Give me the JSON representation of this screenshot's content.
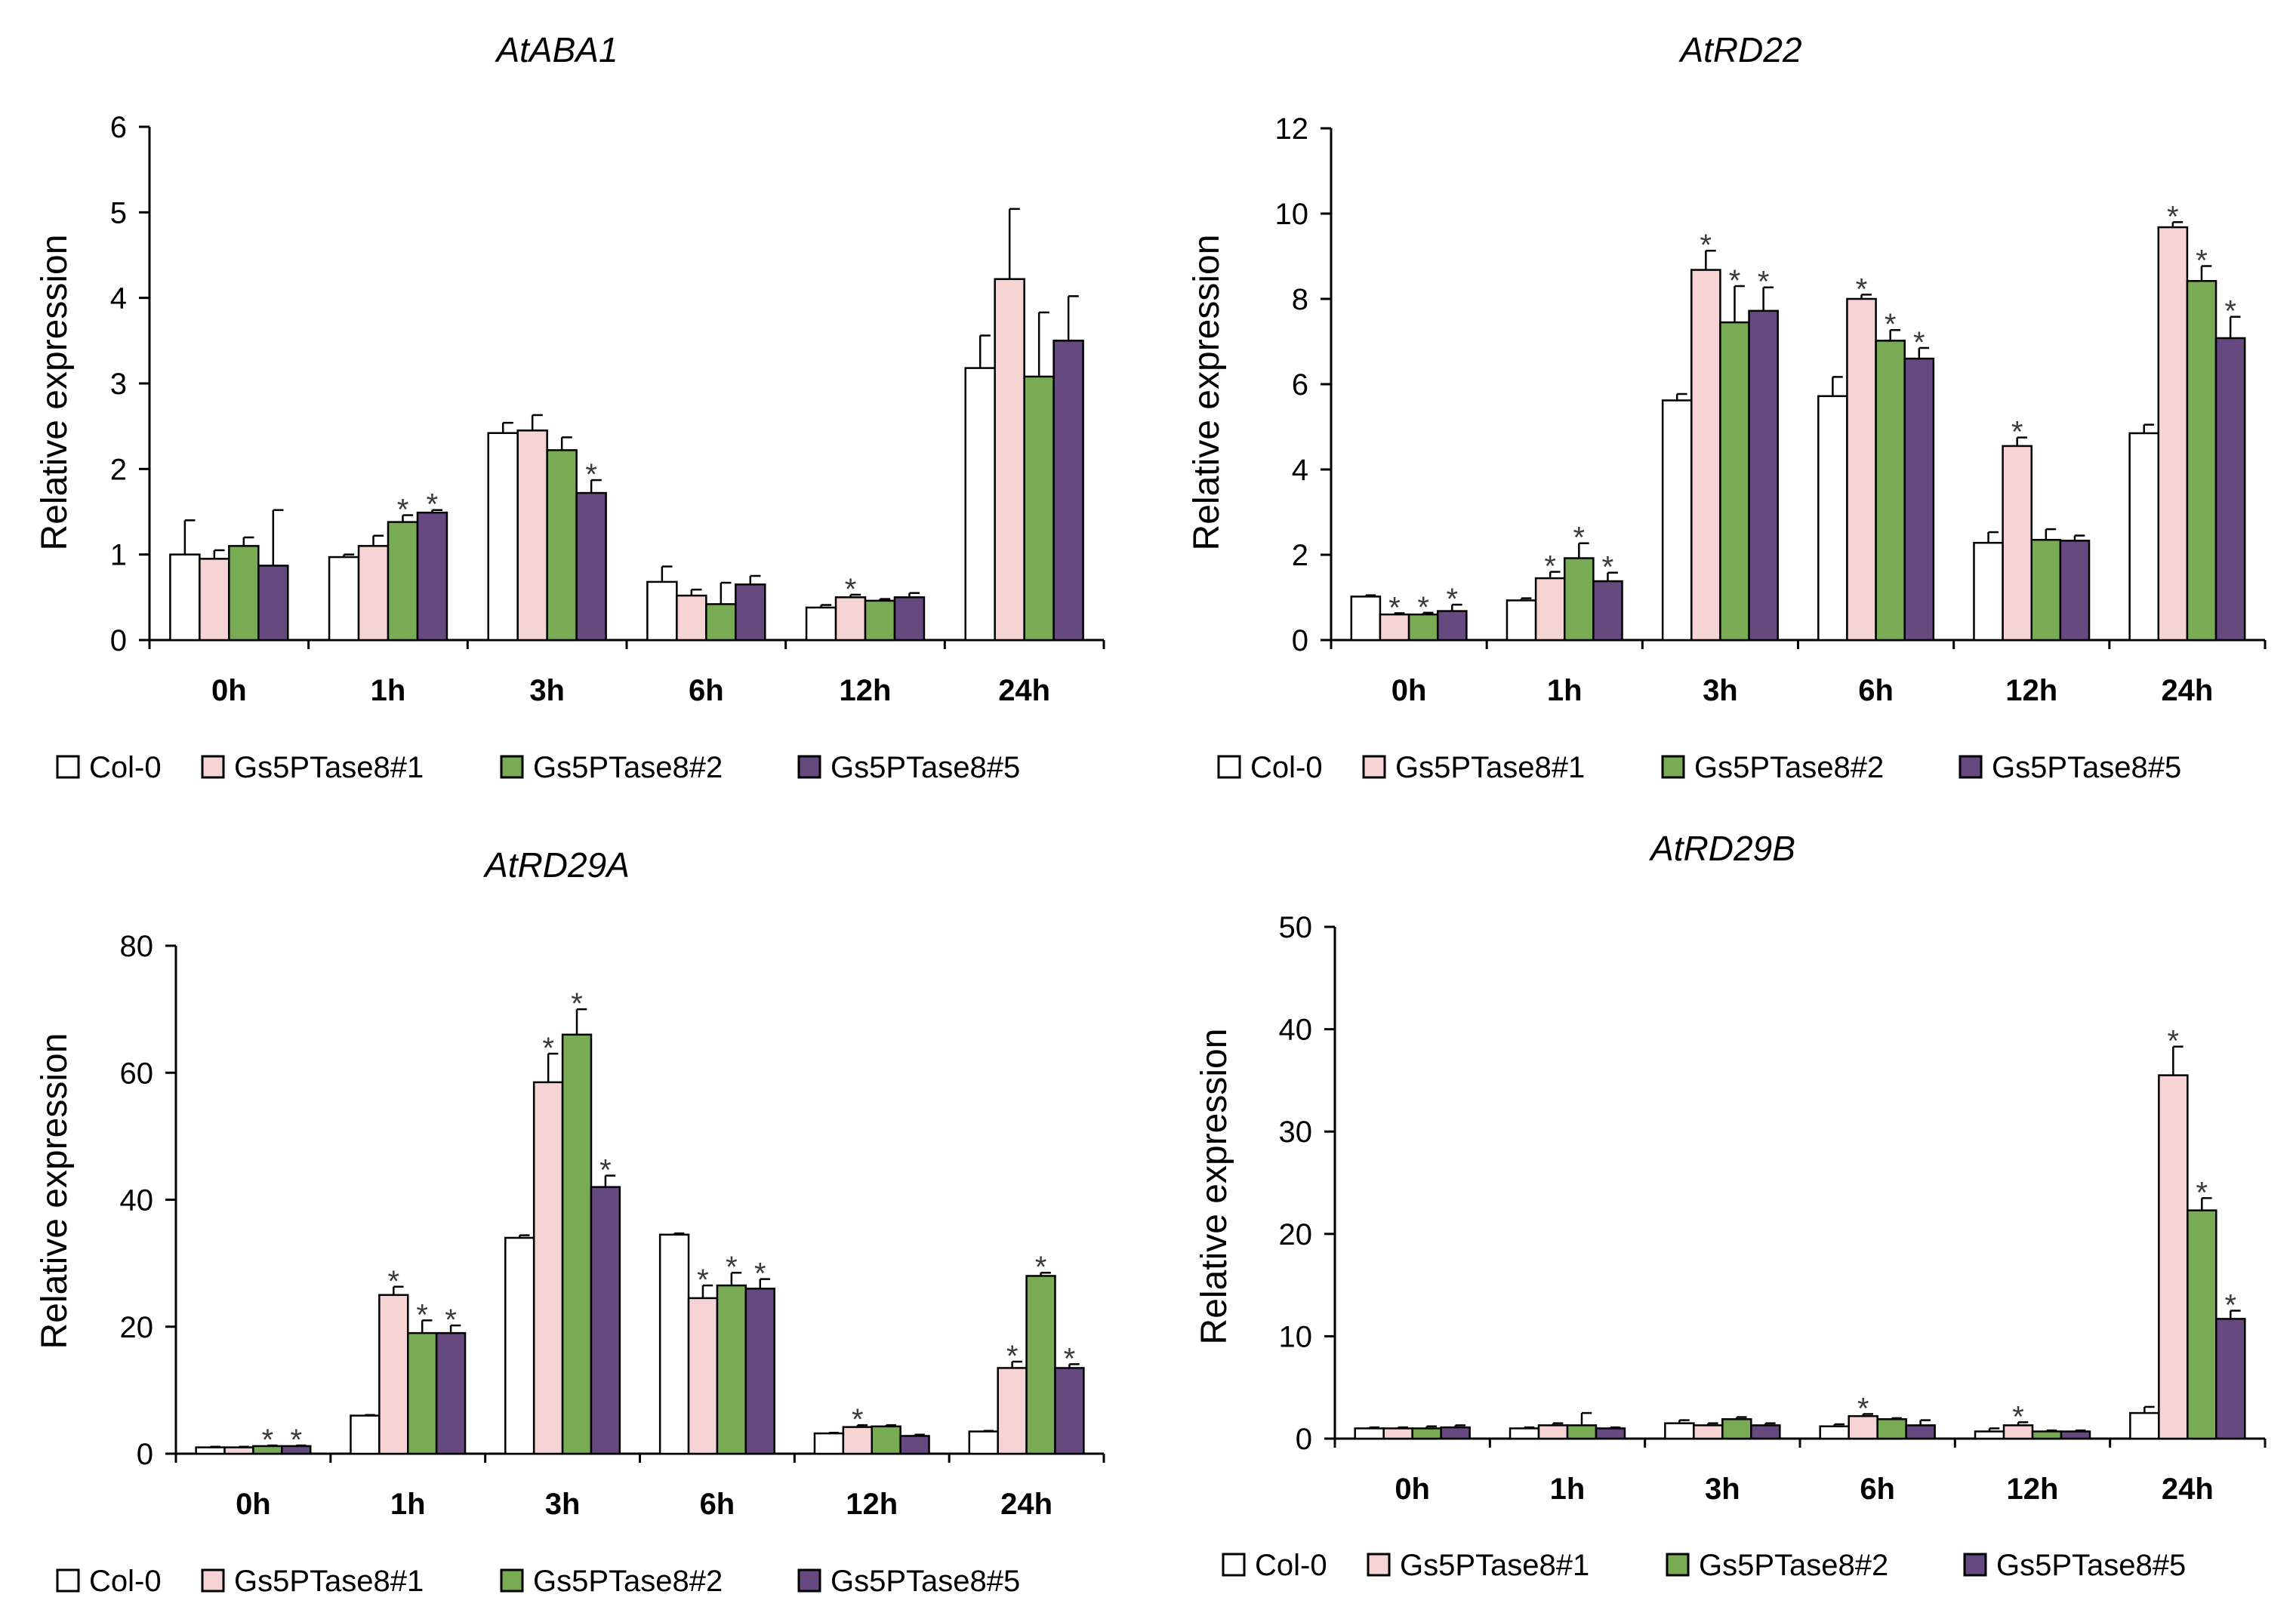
{
  "legend": [
    "Col-0",
    "Gs5PTase8#1",
    "Gs5PTase8#2",
    "Gs5PTase8#5"
  ],
  "colors": [
    "#ffffff",
    "#f7d4d4",
    "#79aa54",
    "#65497f"
  ],
  "chart_data": [
    {
      "type": "bar",
      "title": "AtABA1",
      "ylabel": "Relative expression",
      "xlabel": "",
      "ylim": [
        0,
        6
      ],
      "yticks": [
        0,
        1,
        2,
        3,
        4,
        5,
        6
      ],
      "categories": [
        "0h",
        "1h",
        "3h",
        "6h",
        "12h",
        "24h"
      ],
      "series": [
        {
          "name": "Col-0",
          "values": [
            1.0,
            0.97,
            2.42,
            0.68,
            0.38,
            3.18
          ],
          "errors": [
            0.4,
            0.03,
            0.12,
            0.18,
            0.03,
            0.38
          ],
          "sig": [
            false,
            false,
            false,
            false,
            false,
            false
          ]
        },
        {
          "name": "Gs5PTase8#1",
          "values": [
            0.95,
            1.1,
            2.45,
            0.52,
            0.5,
            4.22
          ],
          "errors": [
            0.1,
            0.12,
            0.18,
            0.07,
            0.03,
            0.82
          ],
          "sig": [
            false,
            false,
            false,
            false,
            true,
            false
          ]
        },
        {
          "name": "Gs5PTase8#2",
          "values": [
            1.1,
            1.38,
            2.22,
            0.42,
            0.46,
            3.08
          ],
          "errors": [
            0.1,
            0.08,
            0.15,
            0.25,
            0.02,
            0.75
          ],
          "sig": [
            false,
            true,
            false,
            false,
            false,
            false
          ]
        },
        {
          "name": "Gs5PTase8#5",
          "values": [
            0.87,
            1.49,
            1.72,
            0.65,
            0.5,
            3.5
          ],
          "errors": [
            0.65,
            0.03,
            0.15,
            0.1,
            0.05,
            0.52
          ],
          "sig": [
            false,
            true,
            true,
            false,
            false,
            false
          ]
        }
      ],
      "legend": [
        "Col-0",
        "Gs5PTase8#1",
        "Gs5PTase8#2",
        "Gs5PTase8#5"
      ]
    },
    {
      "type": "bar",
      "title": "AtRD22",
      "ylabel": "Relative expression",
      "xlabel": "",
      "ylim": [
        0,
        12
      ],
      "yticks": [
        0,
        2,
        4,
        6,
        8,
        10,
        12
      ],
      "categories": [
        "0h",
        "1h",
        "3h",
        "6h",
        "12h",
        "24h"
      ],
      "series": [
        {
          "name": "Col-0",
          "values": [
            1.02,
            0.93,
            5.62,
            5.72,
            2.28,
            4.85
          ],
          "errors": [
            0.03,
            0.05,
            0.15,
            0.45,
            0.25,
            0.2
          ],
          "sig": [
            false,
            false,
            false,
            false,
            false,
            false
          ]
        },
        {
          "name": "Gs5PTase8#1",
          "values": [
            0.6,
            1.45,
            8.68,
            8.0,
            4.55,
            9.68
          ],
          "errors": [
            0.03,
            0.15,
            0.45,
            0.1,
            0.2,
            0.12
          ],
          "sig": [
            true,
            true,
            true,
            true,
            true,
            true
          ]
        },
        {
          "name": "Gs5PTase8#2",
          "values": [
            0.6,
            1.92,
            7.45,
            7.02,
            2.35,
            8.42
          ],
          "errors": [
            0.04,
            0.35,
            0.85,
            0.25,
            0.25,
            0.35
          ],
          "sig": [
            true,
            true,
            true,
            true,
            false,
            true
          ]
        },
        {
          "name": "Gs5PTase8#5",
          "values": [
            0.68,
            1.38,
            7.72,
            6.6,
            2.33,
            7.08
          ],
          "errors": [
            0.15,
            0.2,
            0.55,
            0.25,
            0.12,
            0.5
          ],
          "sig": [
            true,
            true,
            true,
            true,
            false,
            true
          ]
        }
      ],
      "legend": [
        "Col-0",
        "Gs5PTase8#1",
        "Gs5PTase8#2",
        "Gs5PTase8#5"
      ]
    },
    {
      "type": "bar",
      "title": "AtRD29A",
      "ylabel": "Relative expression",
      "xlabel": "",
      "ylim": [
        0,
        80
      ],
      "yticks": [
        0,
        20,
        40,
        60,
        80
      ],
      "categories": [
        "0h",
        "1h",
        "3h",
        "6h",
        "12h",
        "24h"
      ],
      "series": [
        {
          "name": "Col-0",
          "values": [
            1.0,
            6.0,
            34.0,
            34.5,
            3.2,
            3.5
          ],
          "errors": [
            0.1,
            0.1,
            0.4,
            0.2,
            0.1,
            0.1
          ],
          "sig": [
            false,
            false,
            false,
            false,
            false,
            false
          ]
        },
        {
          "name": "Gs5PTase8#1",
          "values": [
            1.0,
            25.0,
            58.5,
            24.5,
            4.2,
            13.5
          ],
          "errors": [
            0.1,
            1.3,
            4.5,
            2.0,
            0.3,
            1.0
          ],
          "sig": [
            false,
            true,
            true,
            true,
            true,
            true
          ]
        },
        {
          "name": "Gs5PTase8#2",
          "values": [
            1.2,
            19.0,
            66.0,
            26.5,
            4.3,
            28.0
          ],
          "errors": [
            0.1,
            2.0,
            4.0,
            2.0,
            0.2,
            0.5
          ],
          "sig": [
            true,
            true,
            true,
            true,
            false,
            true
          ]
        },
        {
          "name": "Gs5PTase8#5",
          "values": [
            1.2,
            19.0,
            42.0,
            26.0,
            2.8,
            13.5
          ],
          "errors": [
            0.1,
            1.2,
            1.8,
            1.5,
            0.2,
            0.6
          ],
          "sig": [
            true,
            true,
            true,
            true,
            false,
            true
          ]
        }
      ],
      "legend": [
        "Col-0",
        "Gs5PTase8#1",
        "Gs5PTase8#2",
        "Gs5PTase8#5"
      ]
    },
    {
      "type": "bar",
      "title": "AtRD29B",
      "ylabel": "Relative expression",
      "xlabel": "",
      "ylim": [
        0,
        50
      ],
      "yticks": [
        0,
        10,
        20,
        30,
        40,
        50
      ],
      "categories": [
        "0h",
        "1h",
        "3h",
        "6h",
        "12h",
        "24h"
      ],
      "series": [
        {
          "name": "Col-0",
          "values": [
            1.0,
            1.0,
            1.5,
            1.2,
            0.7,
            2.5
          ],
          "errors": [
            0.1,
            0.1,
            0.3,
            0.2,
            0.3,
            0.6
          ],
          "sig": [
            false,
            false,
            false,
            false,
            false,
            false
          ]
        },
        {
          "name": "Gs5PTase8#1",
          "values": [
            1.0,
            1.3,
            1.3,
            2.2,
            1.3,
            35.5
          ],
          "errors": [
            0.1,
            0.2,
            0.2,
            0.2,
            0.3,
            2.8
          ],
          "sig": [
            false,
            false,
            false,
            true,
            true,
            true
          ]
        },
        {
          "name": "Gs5PTase8#2",
          "values": [
            1.0,
            1.3,
            1.9,
            1.9,
            0.7,
            22.3
          ],
          "errors": [
            0.2,
            1.2,
            0.2,
            0.1,
            0.1,
            1.2
          ],
          "sig": [
            false,
            false,
            false,
            false,
            false,
            true
          ]
        },
        {
          "name": "Gs5PTase8#5",
          "values": [
            1.1,
            1.0,
            1.3,
            1.3,
            0.7,
            11.7
          ],
          "errors": [
            0.2,
            0.1,
            0.2,
            0.5,
            0.1,
            0.8
          ],
          "sig": [
            false,
            false,
            false,
            false,
            false,
            true
          ]
        }
      ],
      "legend": [
        "Col-0",
        "Gs5PTase8#1",
        "Gs5PTase8#2",
        "Gs5PTase8#5"
      ]
    }
  ]
}
